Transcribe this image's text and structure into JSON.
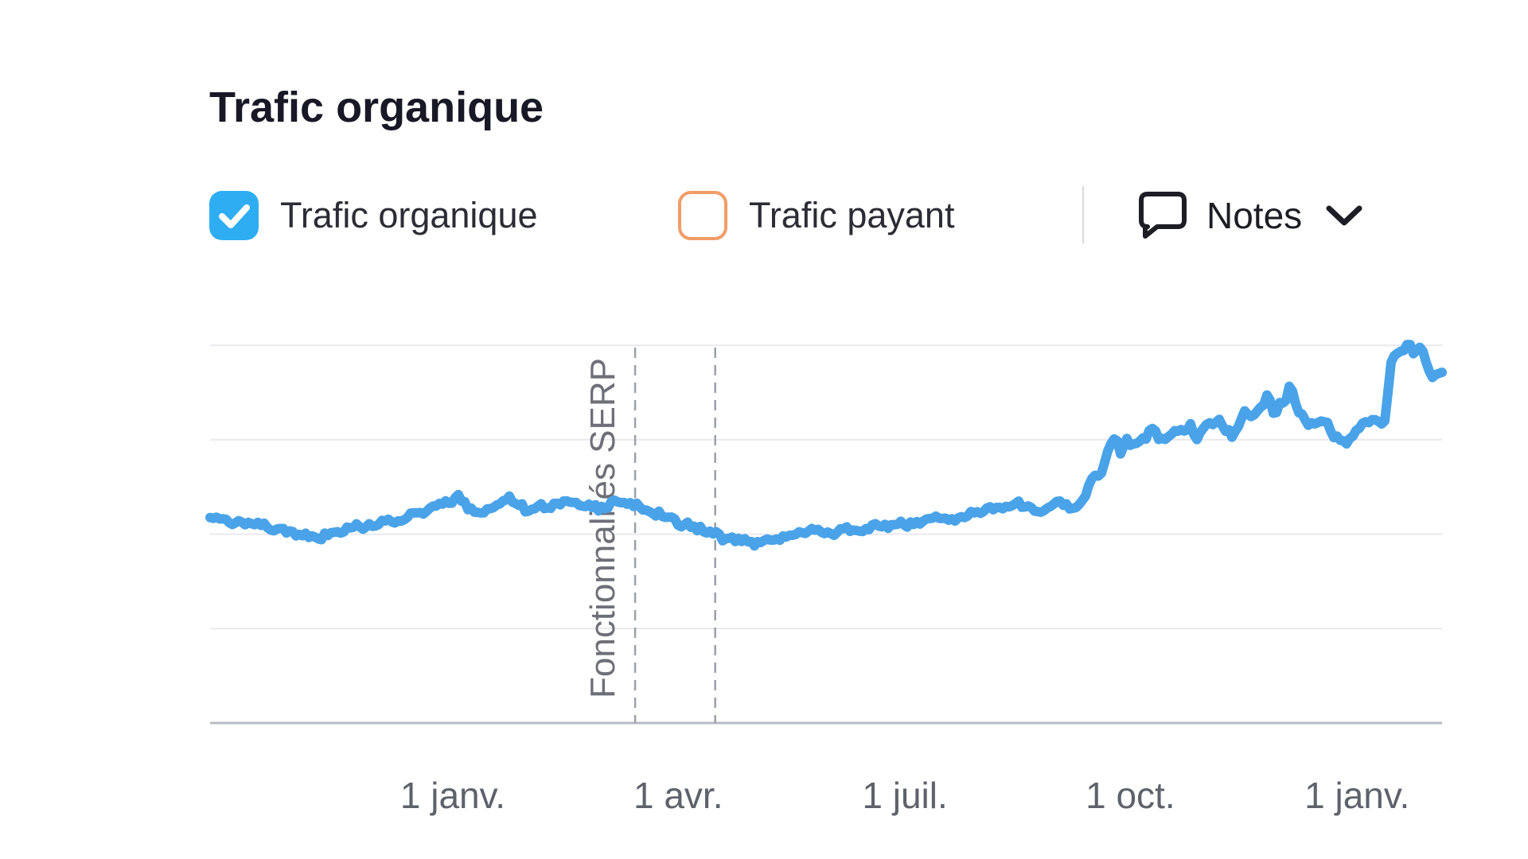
{
  "header": {
    "title": "Trafic organique"
  },
  "legend": {
    "organic": {
      "label": "Trafic organique",
      "checked": true,
      "checkbox_color": "#2fadf2"
    },
    "paid": {
      "label": "Trafic payant",
      "checked": false,
      "checkbox_color": "#f09d68"
    },
    "notes": {
      "label": "Notes"
    }
  },
  "chart_data": {
    "type": "line",
    "title": "Trafic organique",
    "xlabel": "",
    "ylabel": "",
    "x_axis": {
      "tick_labels": [
        "1 janv.",
        "1 avr.",
        "1 juil.",
        "1 oct.",
        "1 janv."
      ],
      "tick_positions": [
        0.197,
        0.38,
        0.564,
        0.747,
        0.931
      ],
      "label_color": "#5d626b"
    },
    "y_axis": {
      "visible_labels": false,
      "ylim": [
        0,
        4.3
      ],
      "gridline_values": [
        1,
        2,
        3,
        4
      ]
    },
    "grid": {
      "horizontal": true,
      "vertical": false,
      "color": "#e9e9ed",
      "axis_color": "#b7bcc4"
    },
    "annotations": {
      "label": "Fonctionnalités SERP",
      "label_color": "#6d7078",
      "line_positions": [
        0.345,
        0.41
      ],
      "line_style": "dashed",
      "line_color": "#9aa0a8"
    },
    "series": [
      {
        "name": "Trafic organique",
        "color": "#4aa3e8",
        "points": [
          [
            0.0,
            2.18
          ],
          [
            0.023,
            2.14
          ],
          [
            0.043,
            2.08
          ],
          [
            0.062,
            2.03
          ],
          [
            0.081,
            1.96
          ],
          [
            0.101,
            2.0
          ],
          [
            0.12,
            2.08
          ],
          [
            0.14,
            2.11
          ],
          [
            0.159,
            2.18
          ],
          [
            0.178,
            2.27
          ],
          [
            0.191,
            2.33
          ],
          [
            0.201,
            2.39
          ],
          [
            0.211,
            2.27
          ],
          [
            0.22,
            2.2
          ],
          [
            0.23,
            2.28
          ],
          [
            0.243,
            2.37
          ],
          [
            0.256,
            2.27
          ],
          [
            0.269,
            2.3
          ],
          [
            0.282,
            2.33
          ],
          [
            0.295,
            2.37
          ],
          [
            0.307,
            2.31
          ],
          [
            0.317,
            2.27
          ],
          [
            0.327,
            2.33
          ],
          [
            0.345,
            2.33
          ],
          [
            0.359,
            2.22
          ],
          [
            0.372,
            2.17
          ],
          [
            0.385,
            2.1
          ],
          [
            0.398,
            2.06
          ],
          [
            0.411,
            2.01
          ],
          [
            0.421,
            1.93
          ],
          [
            0.43,
            1.95
          ],
          [
            0.443,
            1.91
          ],
          [
            0.453,
            1.96
          ],
          [
            0.463,
            1.93
          ],
          [
            0.475,
            2.0
          ],
          [
            0.488,
            2.03
          ],
          [
            0.501,
            2.01
          ],
          [
            0.514,
            2.06
          ],
          [
            0.527,
            2.03
          ],
          [
            0.54,
            2.08
          ],
          [
            0.553,
            2.11
          ],
          [
            0.566,
            2.08
          ],
          [
            0.579,
            2.14
          ],
          [
            0.592,
            2.18
          ],
          [
            0.605,
            2.14
          ],
          [
            0.618,
            2.22
          ],
          [
            0.631,
            2.27
          ],
          [
            0.64,
            2.27
          ],
          [
            0.65,
            2.31
          ],
          [
            0.663,
            2.33
          ],
          [
            0.674,
            2.21
          ],
          [
            0.689,
            2.37
          ],
          [
            0.696,
            2.27
          ],
          [
            0.708,
            2.33
          ],
          [
            0.716,
            2.6
          ],
          [
            0.724,
            2.66
          ],
          [
            0.731,
            2.97
          ],
          [
            0.736,
            3.02
          ],
          [
            0.739,
            2.86
          ],
          [
            0.744,
            3.0
          ],
          [
            0.752,
            2.92
          ],
          [
            0.761,
            3.05
          ],
          [
            0.765,
            3.13
          ],
          [
            0.771,
            2.96
          ],
          [
            0.778,
            3.03
          ],
          [
            0.787,
            3.13
          ],
          [
            0.792,
            3.03
          ],
          [
            0.796,
            3.19
          ],
          [
            0.8,
            2.94
          ],
          [
            0.804,
            3.11
          ],
          [
            0.813,
            3.17
          ],
          [
            0.819,
            3.2
          ],
          [
            0.826,
            3.08
          ],
          [
            0.831,
            3.03
          ],
          [
            0.836,
            3.19
          ],
          [
            0.84,
            3.3
          ],
          [
            0.845,
            3.25
          ],
          [
            0.851,
            3.31
          ],
          [
            0.858,
            3.47
          ],
          [
            0.862,
            3.4
          ],
          [
            0.864,
            3.21
          ],
          [
            0.868,
            3.39
          ],
          [
            0.873,
            3.42
          ],
          [
            0.876,
            3.54
          ],
          [
            0.88,
            3.47
          ],
          [
            0.882,
            3.29
          ],
          [
            0.886,
            3.31
          ],
          [
            0.89,
            3.2
          ],
          [
            0.895,
            3.17
          ],
          [
            0.9,
            3.14
          ],
          [
            0.906,
            3.18
          ],
          [
            0.912,
            3.03
          ],
          [
            0.918,
            3.01
          ],
          [
            0.923,
            2.94
          ],
          [
            0.928,
            3.04
          ],
          [
            0.934,
            3.13
          ],
          [
            0.941,
            3.19
          ],
          [
            0.947,
            3.24
          ],
          [
            0.953,
            3.19
          ],
          [
            0.957,
            3.59
          ],
          [
            0.959,
            3.87
          ],
          [
            0.962,
            3.89
          ],
          [
            0.964,
            3.93
          ],
          [
            0.968,
            3.95
          ],
          [
            0.973,
            4.04
          ],
          [
            0.978,
            3.89
          ],
          [
            0.983,
            4.02
          ],
          [
            0.988,
            3.81
          ],
          [
            0.99,
            3.7
          ],
          [
            0.992,
            3.66
          ],
          [
            0.996,
            3.7
          ],
          [
            1.0,
            3.7
          ]
        ]
      }
    ],
    "legend_position": "top"
  }
}
